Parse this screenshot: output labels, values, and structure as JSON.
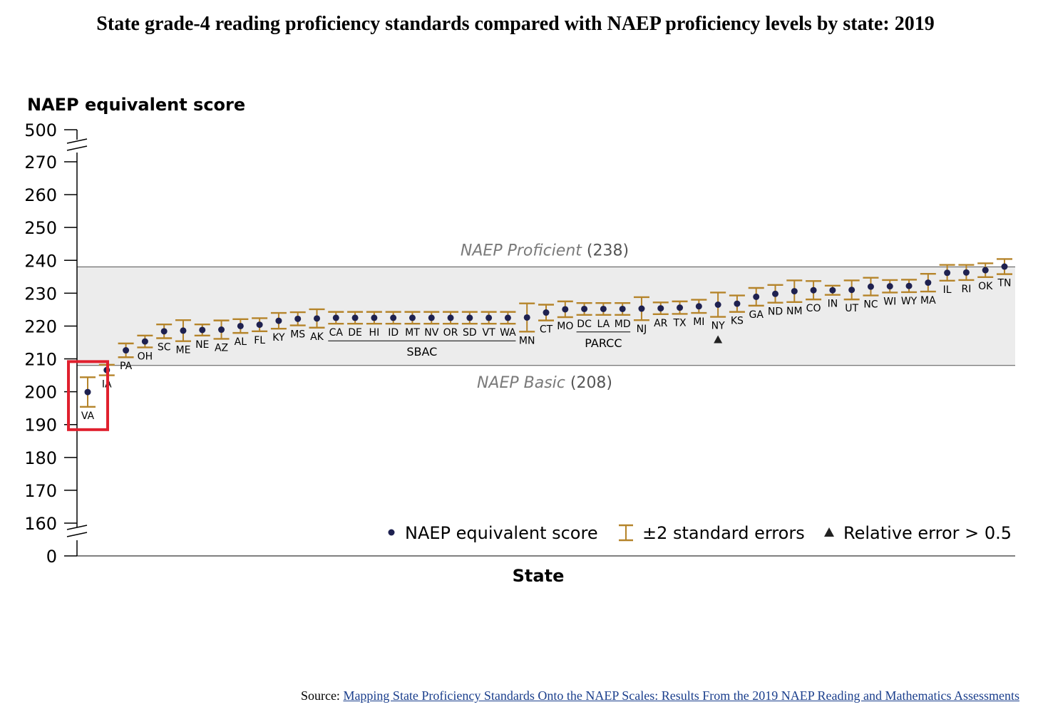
{
  "title": "State grade-4 reading proficiency standards compared with NAEP proficiency levels by state: 2019",
  "source": {
    "prefix": "Source:",
    "link_text": "Mapping State Proficiency Standards Onto the NAEP Scales: Results From the 2019 NAEP Reading and Mathematics Assessments"
  },
  "colors": {
    "point": "#1e2150",
    "errorbar": "#b5842a",
    "band": "#ececec",
    "axis": "#000000",
    "ref_text": "#7a7a7a",
    "highlight": "#e0202e"
  },
  "chart_data": {
    "type": "scatter",
    "title": "State grade-4 reading proficiency standards compared with NAEP proficiency levels by state: 2019",
    "xlabel": "State",
    "ylabel": "NAEP equivalent score",
    "y_ticks": [
      "0",
      "160",
      "170",
      "180",
      "190",
      "200",
      "210",
      "220",
      "230",
      "240",
      "250",
      "260",
      "270",
      "500"
    ],
    "ylim": [
      160,
      270
    ],
    "axis_breaks": "scale break between 0 and 160 and between 270 and 500",
    "reference_lines": [
      {
        "label_italic": "NAEP Proficient",
        "label_value": "(238)",
        "value": 238
      },
      {
        "label_italic": "NAEP Basic",
        "label_value": "(208)",
        "value": 208
      }
    ],
    "legend": {
      "position": "bottom-right",
      "items": [
        "NAEP equivalent score",
        "±2 standard errors",
        "Relative error > 0.5"
      ]
    },
    "groups": [
      {
        "label": "SBAC",
        "members": [
          "CA",
          "DE",
          "HI",
          "ID",
          "MT",
          "NV",
          "OR",
          "SD",
          "VT",
          "WA"
        ]
      },
      {
        "label": "PARCC",
        "members": [
          "DC",
          "LA",
          "MD"
        ]
      }
    ],
    "highlighted": [
      "VA"
    ],
    "relative_error_flag": [
      "NY"
    ],
    "points": [
      {
        "state": "VA",
        "score": 199.9,
        "low": 195.4,
        "high": 204.4
      },
      {
        "state": "IA",
        "score": 206.6,
        "low": 205.0,
        "high": 208.2
      },
      {
        "state": "PA",
        "score": 212.6,
        "low": 210.5,
        "high": 214.7
      },
      {
        "state": "OH",
        "score": 215.3,
        "low": 213.5,
        "high": 217.1
      },
      {
        "state": "SC",
        "score": 218.4,
        "low": 216.3,
        "high": 220.5
      },
      {
        "state": "ME",
        "score": 218.6,
        "low": 215.4,
        "high": 221.8
      },
      {
        "state": "NE",
        "score": 218.8,
        "low": 217.1,
        "high": 220.5
      },
      {
        "state": "AZ",
        "score": 218.9,
        "low": 216.1,
        "high": 221.7
      },
      {
        "state": "AL",
        "score": 220.0,
        "low": 217.9,
        "high": 222.1
      },
      {
        "state": "FL",
        "score": 220.4,
        "low": 218.4,
        "high": 222.4
      },
      {
        "state": "KY",
        "score": 221.6,
        "low": 219.2,
        "high": 224.0
      },
      {
        "state": "MS",
        "score": 222.2,
        "low": 220.2,
        "high": 224.2
      },
      {
        "state": "AK",
        "score": 222.3,
        "low": 219.5,
        "high": 225.1
      },
      {
        "state": "CA",
        "score": 222.5,
        "low": 220.7,
        "high": 224.3
      },
      {
        "state": "DE",
        "score": 222.5,
        "low": 220.7,
        "high": 224.3
      },
      {
        "state": "HI",
        "score": 222.5,
        "low": 220.7,
        "high": 224.3
      },
      {
        "state": "ID",
        "score": 222.5,
        "low": 220.7,
        "high": 224.3
      },
      {
        "state": "MT",
        "score": 222.5,
        "low": 220.7,
        "high": 224.3
      },
      {
        "state": "NV",
        "score": 222.5,
        "low": 220.7,
        "high": 224.3
      },
      {
        "state": "OR",
        "score": 222.5,
        "low": 220.7,
        "high": 224.3
      },
      {
        "state": "SD",
        "score": 222.5,
        "low": 220.7,
        "high": 224.3
      },
      {
        "state": "VT",
        "score": 222.5,
        "low": 220.7,
        "high": 224.3
      },
      {
        "state": "WA",
        "score": 222.5,
        "low": 220.7,
        "high": 224.3
      },
      {
        "state": "MN",
        "score": 222.6,
        "low": 218.3,
        "high": 226.9
      },
      {
        "state": "CT",
        "score": 224.1,
        "low": 221.7,
        "high": 226.5
      },
      {
        "state": "MO",
        "score": 225.1,
        "low": 222.7,
        "high": 227.5
      },
      {
        "state": "DC",
        "score": 225.2,
        "low": 223.4,
        "high": 227.0
      },
      {
        "state": "LA",
        "score": 225.2,
        "low": 223.4,
        "high": 227.0
      },
      {
        "state": "MD",
        "score": 225.2,
        "low": 223.4,
        "high": 227.0
      },
      {
        "state": "NJ",
        "score": 225.3,
        "low": 221.8,
        "high": 228.8
      },
      {
        "state": "AR",
        "score": 225.4,
        "low": 223.6,
        "high": 227.2
      },
      {
        "state": "TX",
        "score": 225.6,
        "low": 223.7,
        "high": 227.5
      },
      {
        "state": "MI",
        "score": 226.0,
        "low": 224.0,
        "high": 228.0
      },
      {
        "state": "NY",
        "score": 226.5,
        "low": 222.8,
        "high": 230.2
      },
      {
        "state": "KS",
        "score": 226.8,
        "low": 224.3,
        "high": 229.3
      },
      {
        "state": "GA",
        "score": 228.9,
        "low": 226.2,
        "high": 231.6
      },
      {
        "state": "ND",
        "score": 229.8,
        "low": 227.1,
        "high": 232.5
      },
      {
        "state": "NM",
        "score": 230.6,
        "low": 227.3,
        "high": 233.9
      },
      {
        "state": "CO",
        "score": 230.9,
        "low": 228.1,
        "high": 233.7
      },
      {
        "state": "IN",
        "score": 230.9,
        "low": 229.5,
        "high": 232.3
      },
      {
        "state": "UT",
        "score": 231.0,
        "low": 228.1,
        "high": 233.9
      },
      {
        "state": "NC",
        "score": 232.0,
        "low": 229.3,
        "high": 234.7
      },
      {
        "state": "WI",
        "score": 232.1,
        "low": 230.2,
        "high": 234.0
      },
      {
        "state": "WY",
        "score": 232.2,
        "low": 230.3,
        "high": 234.1
      },
      {
        "state": "MA",
        "score": 233.2,
        "low": 230.5,
        "high": 235.9
      },
      {
        "state": "IL",
        "score": 236.2,
        "low": 233.8,
        "high": 238.6
      },
      {
        "state": "RI",
        "score": 236.3,
        "low": 234.0,
        "high": 238.6
      },
      {
        "state": "OK",
        "score": 237.0,
        "low": 234.9,
        "high": 239.1
      },
      {
        "state": "TN",
        "score": 238.1,
        "low": 235.8,
        "high": 240.4
      }
    ]
  }
}
